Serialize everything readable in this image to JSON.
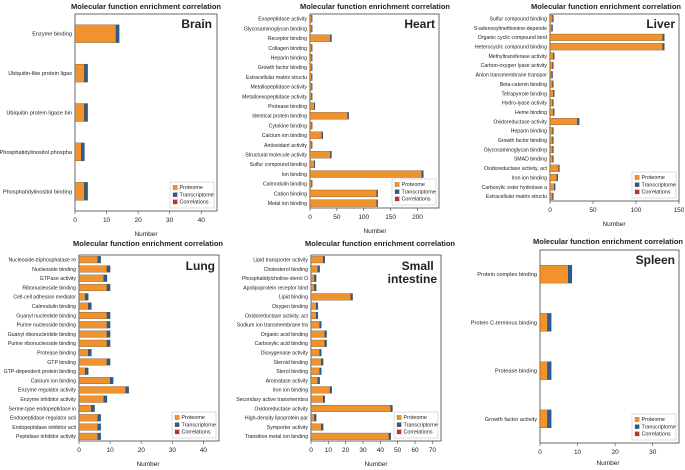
{
  "colors": {
    "proteome": "#f0922e",
    "transcriptome": "#2b5c8a",
    "correlations": "#c0362c",
    "frame": "#444444",
    "text": "#222222"
  },
  "legend_labels": [
    "Proteome",
    "Transcriptome",
    "Correlations"
  ],
  "chart_data": [
    {
      "type": "bar",
      "orientation": "horizontal",
      "stacked": true,
      "title": "Molecular function enrichment correlation",
      "panel_label": "Brain",
      "xlabel": "Number",
      "xlim": [
        0,
        45
      ],
      "xticks": [
        0,
        10,
        20,
        30,
        40
      ],
      "categories": [
        "Enzyme binding",
        "Ubiquitin-like protein ligas",
        "Ubiquitin protein ligase bin",
        "Phosphatidylinositol phospha",
        "Phosphatidylinositol binding"
      ],
      "series": [
        {
          "name": "Proteome",
          "values": [
            13,
            3,
            3,
            2,
            3
          ]
        },
        {
          "name": "Transcriptome",
          "values": [
            1,
            1,
            1,
            1,
            1
          ]
        },
        {
          "name": "Correlations",
          "values": [
            0,
            0,
            0,
            0,
            0
          ]
        }
      ],
      "legend": "bottom-right"
    },
    {
      "type": "bar",
      "orientation": "horizontal",
      "stacked": true,
      "title": "Molecular function enrichment correlation",
      "panel_label": "Heart",
      "xlabel": "Number",
      "xlim": [
        0,
        240
      ],
      "xticks": [
        0,
        50,
        100,
        150,
        200
      ],
      "categories": [
        "Exopeptidase activity",
        "Glycosaminoglycan binding",
        "Receptor binding",
        "Collagen binding",
        "Heparin binding",
        "Growth factor binding",
        "Extracellular matrix structu",
        "Metallopeptidase activity",
        "Metalloexopeptidase activity",
        "Protease binding",
        "Identical protein binding",
        "Cytokine binding",
        "Calcium ion binding",
        "Antioxidant activity",
        "Structural molecule activity",
        "Sulfur compound binding",
        "Ion binding",
        "Calmodulin binding",
        "Cation binding",
        "Metal ion binding"
      ],
      "series": [
        {
          "name": "Proteome",
          "values": [
            3,
            3,
            38,
            3,
            3,
            3,
            3,
            3,
            3,
            8,
            70,
            3,
            22,
            3,
            38,
            8,
            208,
            3,
            124,
            124
          ]
        },
        {
          "name": "Transcriptome",
          "values": [
            1,
            1,
            2,
            1,
            1,
            1,
            1,
            1,
            1,
            1,
            2,
            1,
            2,
            1,
            2,
            1,
            3,
            1,
            2,
            2
          ]
        },
        {
          "name": "Correlations",
          "values": [
            0,
            0,
            0,
            0,
            0,
            0,
            0,
            0,
            0,
            0,
            0,
            0,
            0,
            0,
            0,
            0,
            0,
            0,
            0,
            0
          ]
        }
      ],
      "legend": "bottom-right"
    },
    {
      "type": "bar",
      "orientation": "horizontal",
      "stacked": true,
      "title": "Molecular function enrichment correlation",
      "panel_label": "Liver",
      "xlabel": "Number",
      "xlim": [
        0,
        150
      ],
      "xticks": [
        0,
        50,
        100,
        150
      ],
      "categories": [
        "Sulfur compound binding",
        "S-adenosylmethionine-depende",
        "Organic cyclic compound bind",
        "Heterocyclic compound binding",
        "Methyltransferase activity",
        "Carbon-oxygen lyase activity",
        "Anion transmembrane transpor",
        "Beta-catenin binding",
        "Tetrapyrrole binding",
        "Hydro-lyase activity",
        "Heme binding",
        "Oxidoreductase activity",
        "Heparin binding",
        "Growth factor binding",
        "Glycosaminoglycan binding",
        "SMAD binding",
        "Oxidoreductase activity, act",
        "Iron ion binding",
        "Carboxylic ester hydrolase a",
        "Extracellular matrix structu"
      ],
      "series": [
        {
          "name": "Proteome",
          "values": [
            3,
            2,
            131,
            131,
            4,
            3,
            2,
            3,
            4,
            3,
            4,
            32,
            3,
            3,
            3,
            3,
            10,
            8,
            5,
            3
          ]
        },
        {
          "name": "Transcriptome",
          "values": [
            1,
            1,
            2,
            2,
            1,
            1,
            1,
            1,
            1,
            1,
            1,
            2,
            1,
            1,
            1,
            1,
            1,
            1,
            1,
            1
          ]
        },
        {
          "name": "Correlations",
          "values": [
            0,
            0,
            0,
            0,
            0,
            0,
            0,
            0,
            0,
            0,
            0,
            0,
            0,
            0,
            0,
            0,
            0,
            0,
            0,
            0
          ]
        }
      ],
      "legend": "bottom-right"
    },
    {
      "type": "bar",
      "orientation": "horizontal",
      "stacked": true,
      "title": "Molecular function enrichment correlation",
      "panel_label": "Lung",
      "xlabel": "Number",
      "xlim": [
        0,
        45
      ],
      "xticks": [
        0,
        10,
        20,
        30,
        40
      ],
      "categories": [
        "Nucleoside-triphosphatase re",
        "Nucleoside binding",
        "GTPase activity",
        "Ribonucleoside binding",
        "Cell-cell adhesion mediator",
        "Calmodulin binding",
        "Guanyl nucleotide binding",
        "Purine nucleoside binding",
        "Guanyl ribonucleotide binding",
        "Purine ribonucleoside binding",
        "Protease binding",
        "GTP binding",
        "GTP-dependent protein binding",
        "Calcium ion binding",
        "Enzyme regulator activity",
        "Enzyme inhibitor activity",
        "Serine-type endopeptidase in",
        "Endopeptidase regulator acti",
        "Endopeptidase inhibitor acti",
        "Peptidase inhibitor activity"
      ],
      "series": [
        {
          "name": "Proteome",
          "values": [
            6,
            9,
            8,
            9,
            2,
            3,
            9,
            9,
            9,
            9,
            3,
            9,
            2,
            10,
            15,
            8,
            4,
            6,
            6,
            6
          ]
        },
        {
          "name": "Transcriptome",
          "values": [
            1,
            1,
            1,
            1,
            1,
            1,
            1,
            1,
            1,
            1,
            1,
            1,
            1,
            1,
            1,
            1,
            1,
            1,
            1,
            1
          ]
        },
        {
          "name": "Correlations",
          "values": [
            0,
            0,
            0,
            0,
            0,
            0,
            0,
            0,
            0,
            0,
            0,
            0,
            0,
            0,
            0,
            0,
            0,
            0,
            0,
            0
          ]
        }
      ],
      "legend": "bottom-right"
    },
    {
      "type": "bar",
      "orientation": "horizontal",
      "stacked": true,
      "title": "Molecular function enrichment correlation",
      "panel_label": "Small intestine",
      "xlabel": "Number",
      "xlim": [
        0,
        75
      ],
      "xticks": [
        0,
        10,
        20,
        30,
        40,
        50,
        60,
        70
      ],
      "categories": [
        "Lipid transporter activity",
        "Cholesterol binding",
        "Phosphatidylcholine-sterol O",
        "Apolipoprotein receptor bind",
        "Lipid binding",
        "Oxygen binding",
        "Oxidoreductase activity, act",
        "Sodium ion transmembrane tra",
        "Organic acid binding",
        "Carboxylic acid binding",
        "Dioxygenase activity",
        "Steroid binding",
        "Sterol binding",
        "Aromatase activity",
        "Iron ion binding",
        "Secondary active transmembra",
        "Oxidoreductase activity",
        "High-density lipoprotein par",
        "Symporter activity",
        "Transition metal ion binding"
      ],
      "series": [
        {
          "name": "Proteome",
          "values": [
            7,
            4,
            2,
            2,
            23,
            3,
            3,
            5,
            8,
            8,
            5,
            6,
            5,
            4,
            11,
            7,
            46,
            2,
            6,
            45
          ]
        },
        {
          "name": "Transcriptome",
          "values": [
            1,
            1,
            1,
            1,
            1,
            1,
            1,
            1,
            1,
            1,
            1,
            1,
            1,
            1,
            1,
            1,
            1,
            1,
            1,
            1
          ]
        },
        {
          "name": "Correlations",
          "values": [
            0,
            0,
            0,
            0,
            0,
            0,
            0,
            0,
            0,
            0,
            0,
            0,
            0,
            0,
            0,
            0,
            0,
            0,
            0,
            0
          ]
        }
      ],
      "legend": "bottom-right"
    },
    {
      "type": "bar",
      "orientation": "horizontal",
      "stacked": true,
      "title": "Molecular function enrichment correlation",
      "panel_label": "Spleen",
      "xlabel": "Number",
      "xlim": [
        0,
        37
      ],
      "xticks": [
        0,
        10,
        20,
        30
      ],
      "categories": [
        "Protein complex binding",
        "Protein C-terminus binding",
        "Protease binding",
        "Growth factor activity"
      ],
      "series": [
        {
          "name": "Proteome",
          "values": [
            7.5,
            2,
            2,
            2
          ]
        },
        {
          "name": "Transcriptome",
          "values": [
            1,
            1,
            1,
            1
          ]
        },
        {
          "name": "Correlations",
          "values": [
            0,
            0,
            0,
            0
          ]
        }
      ],
      "legend": "bottom-right"
    }
  ]
}
